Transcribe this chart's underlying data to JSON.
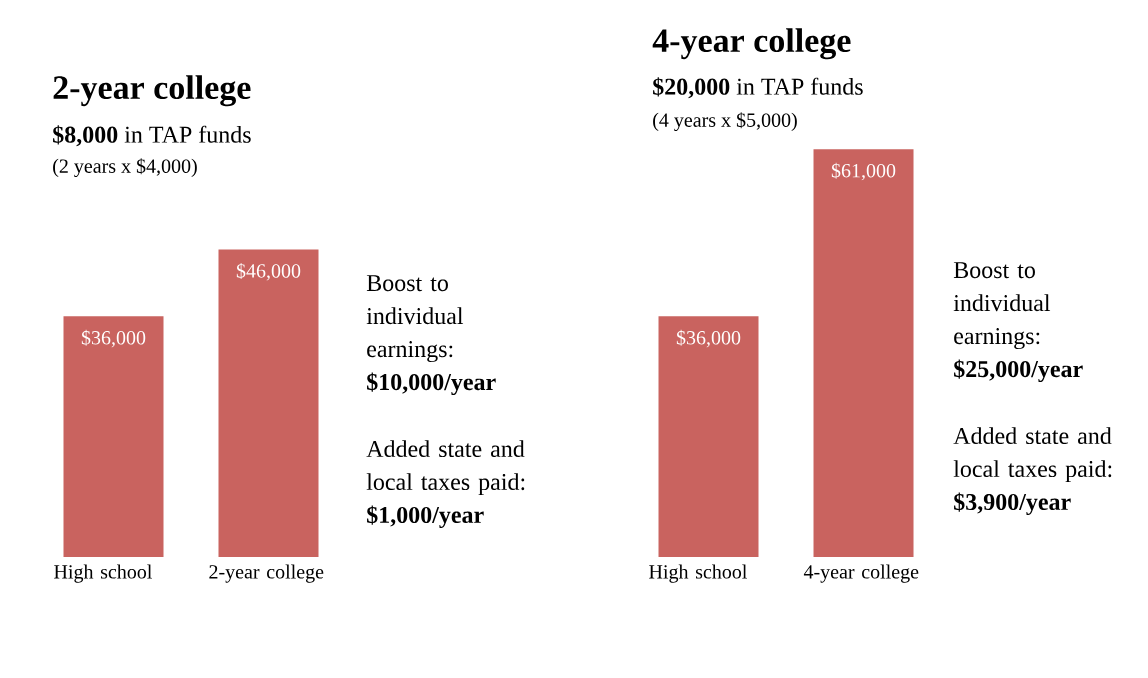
{
  "chart_data": [
    {
      "type": "bar",
      "title": "2-year college",
      "subtitle": "**$8,000** in TAP funds",
      "categories": [
        "High school",
        "2-year college"
      ],
      "values": [
        36000,
        46000
      ],
      "value_labels": [
        "$36,000",
        "$46,000"
      ],
      "color": "#c9635f",
      "annotations": [
        "(2 years x $4,000)",
        "Boost to individual earnings: **$10,000/year**",
        "Added state and local taxes paid: **$1,000/year**"
      ]
    },
    {
      "type": "bar",
      "title": "4-year college",
      "subtitle": "**$20,000** in TAP funds",
      "categories": [
        "High school",
        "4-year college"
      ],
      "values": [
        36000,
        61000
      ],
      "value_labels": [
        "$36,000",
        "$61,000"
      ],
      "color": "#c9635f",
      "annotations": [
        "(4 years x $5,000)",
        "Boost to individual earnings: **$25,000/year**",
        "Added state and local taxes paid: **$3,900/year**"
      ]
    }
  ]
}
